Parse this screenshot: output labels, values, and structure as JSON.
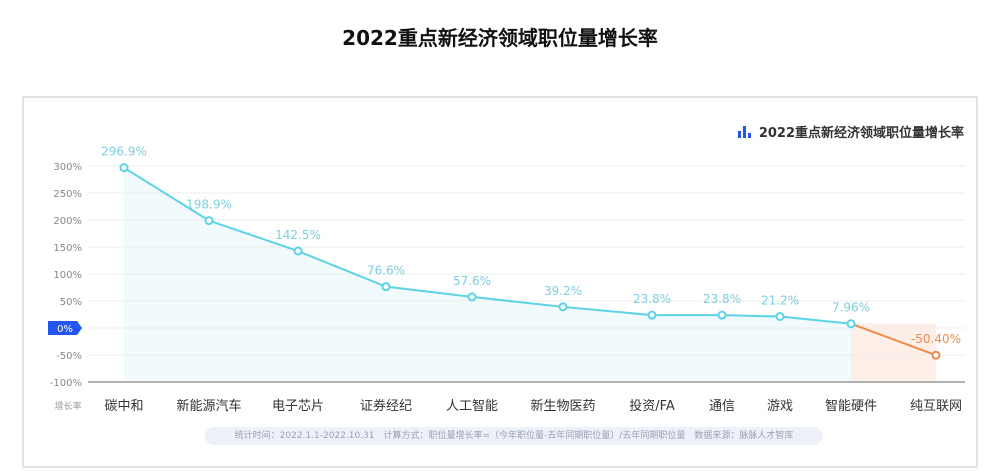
{
  "title": "2022重点新经济领域职位量增长率",
  "footer": "统计时间：2022.1.1-2022.10.31　计算方式：职位量增长率=（今年职位量-去年同期职位量）/去年同期职位量　数据来源：脉脉人才智库",
  "chart_data": {
    "type": "line",
    "title": "2022重点新经济领域职位量增长率",
    "legend": "2022重点新经济领域职位量增长率",
    "legend_position": "top-right",
    "ylabel": "增长率",
    "categories": [
      "碳中和",
      "新能源汽车",
      "电子芯片",
      "证券经纪",
      "人工智能",
      "新生物医药",
      "投资/FA",
      "通信",
      "游戏",
      "智能硬件",
      "纯互联网"
    ],
    "values": [
      296.9,
      198.9,
      142.5,
      76.6,
      57.6,
      39.2,
      23.8,
      23.8,
      21.2,
      7.96,
      -50.4
    ],
    "data_labels": [
      "296.9%",
      "198.9%",
      "142.5%",
      "76.6%",
      "57.6%",
      "39.2%",
      "23.8%",
      "23.8%",
      "21.2%",
      "7.96%",
      "-50.40%"
    ],
    "yticks": [
      "300%",
      "250%",
      "200%",
      "150%",
      "100%",
      "50%",
      "0%",
      "-50%",
      "-100%"
    ],
    "ytick_values": [
      300,
      250,
      200,
      150,
      100,
      50,
      0,
      -50,
      -100
    ],
    "ylim": [
      -100,
      300
    ],
    "grid": true,
    "colors": {
      "line": "#5dd3e6",
      "negative": "#ef8a4a",
      "zero_badge": "#2355f0",
      "label": "#7ccfe0",
      "neg_label": "#ef8a4a"
    }
  }
}
